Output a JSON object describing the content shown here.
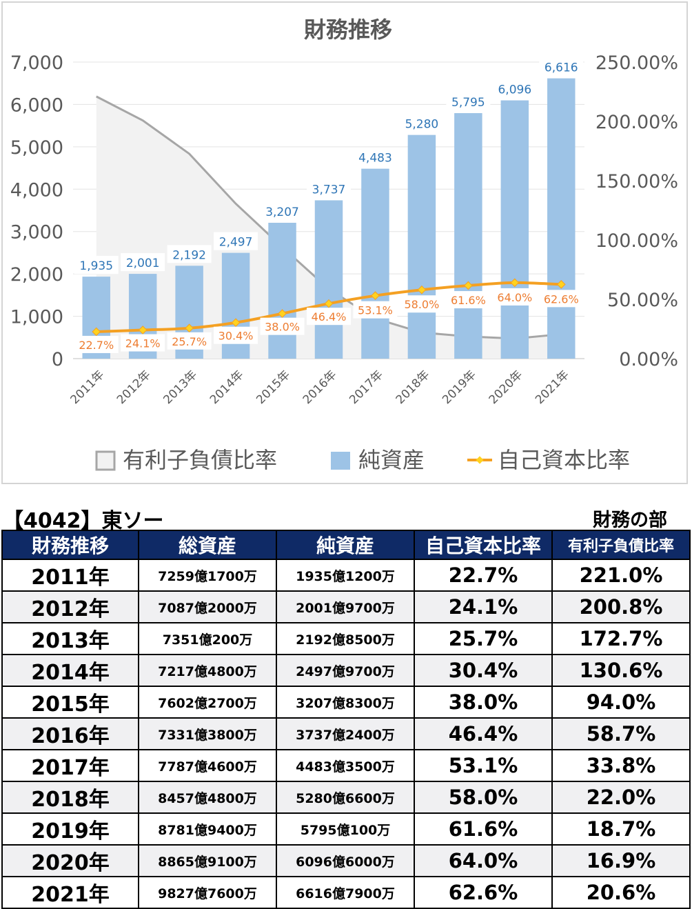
{
  "chart_data": {
    "type": "bar",
    "title": "財務推移",
    "categories": [
      "2011年",
      "2012年",
      "2013年",
      "2014年",
      "2015年",
      "2016年",
      "2017年",
      "2018年",
      "2019年",
      "2020年",
      "2021年"
    ],
    "series": [
      {
        "name": "有利子負債比率",
        "type": "area",
        "axis": "right",
        "values": [
          221.0,
          200.8,
          172.7,
          130.6,
          94.0,
          58.7,
          33.8,
          22.0,
          18.7,
          16.9,
          20.6
        ],
        "color": "#a6a6a6"
      },
      {
        "name": "純資産",
        "type": "bar",
        "axis": "left",
        "values": [
          1935,
          2001,
          2192,
          2497,
          3207,
          3737,
          4483,
          5280,
          5795,
          6096,
          6616
        ],
        "labels": [
          "1,935",
          "2,001",
          "2,192",
          "2,497",
          "3,207",
          "3,737",
          "4,483",
          "5,280",
          "5,795",
          "6,096",
          "6,616"
        ],
        "color": "#9dc3e6"
      },
      {
        "name": "自己資本比率",
        "type": "line",
        "axis": "right",
        "values": [
          22.7,
          24.1,
          25.7,
          30.4,
          38.0,
          46.4,
          53.1,
          58.0,
          61.6,
          64.0,
          62.6
        ],
        "labels": [
          "22.7%",
          "24.1%",
          "25.7%",
          "30.4%",
          "38.0%",
          "46.4%",
          "53.1%",
          "58.0%",
          "61.6%",
          "64.0%",
          "62.6%"
        ],
        "color": "#f4a022"
      }
    ],
    "y_left": {
      "min": 0,
      "max": 7000,
      "ticks": [
        "0",
        "1,000",
        "2,000",
        "3,000",
        "4,000",
        "5,000",
        "6,000",
        "7,000"
      ]
    },
    "y_right": {
      "min": 0,
      "max": 250,
      "ticks": [
        "0.00%",
        "50.00%",
        "100.00%",
        "150.00%",
        "200.00%",
        "250.00%"
      ]
    },
    "grid": true,
    "legend_position": "bottom",
    "colors": {
      "bar_label": "#2e75b6",
      "line_label": "#ed7d31",
      "axis_text": "#595959"
    }
  },
  "header": {
    "company": "【4042】東ソー",
    "department": "財務の部"
  },
  "table": {
    "columns": [
      "財務推移",
      "総資産",
      "純資産",
      "自己資本比率",
      "有利子負債比率"
    ],
    "rows": [
      [
        "2011年",
        "7259億1700万",
        "1935億1200万",
        "22.7%",
        "221.0%"
      ],
      [
        "2012年",
        "7087億2000万",
        "2001億9700万",
        "24.1%",
        "200.8%"
      ],
      [
        "2013年",
        "7351億200万",
        "2192億8500万",
        "25.7%",
        "172.7%"
      ],
      [
        "2014年",
        "7217億4800万",
        "2497億9700万",
        "30.4%",
        "130.6%"
      ],
      [
        "2015年",
        "7602億2700万",
        "3207億8300万",
        "38.0%",
        "94.0%"
      ],
      [
        "2016年",
        "7331億3800万",
        "3737億2400万",
        "46.4%",
        "58.7%"
      ],
      [
        "2017年",
        "7787億4600万",
        "4483億3500万",
        "53.1%",
        "33.8%"
      ],
      [
        "2018年",
        "8457億4800万",
        "5280億6600万",
        "58.0%",
        "22.0%"
      ],
      [
        "2019年",
        "8781億9400万",
        "5795億100万",
        "61.6%",
        "18.7%"
      ],
      [
        "2020年",
        "8865億9100万",
        "6096億6000万",
        "64.0%",
        "16.9%"
      ],
      [
        "2021年",
        "9827億7600万",
        "6616億7900万",
        "62.6%",
        "20.6%"
      ]
    ],
    "colors": {
      "header_bg": "#0f2a66",
      "header_text": "#ffffff",
      "alt_row": "#f0f0f2"
    }
  }
}
